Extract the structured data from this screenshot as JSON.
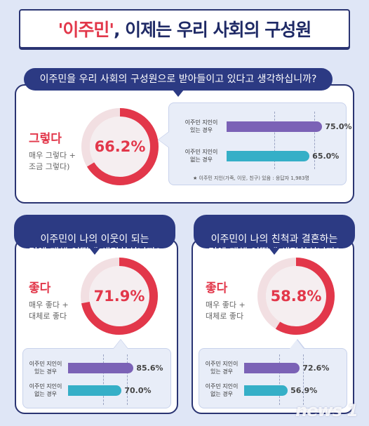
{
  "title": {
    "highlight": "'이주민'",
    "rest": ", 이제는 우리 사회의 구성원"
  },
  "colors": {
    "accent": "#e2374a",
    "navy": "#2c3a83",
    "purple": "#7b62b6",
    "teal": "#35afc7",
    "ring_bg": "#f2dfe2"
  },
  "footnote": "★ 이주민 지인(가족, 이웃, 친구) 있음 : 응답자 1,983명",
  "watermark": "news 1",
  "chart_data": [
    {
      "type": "pie",
      "question": "이주민을 우리 사회의 구성원으로 받아들이고 있다고 생각하십니까?",
      "answer_label": "그렇다",
      "answer_note_1": "매우 그렇다 +",
      "answer_note_2": "조금 그렇다)",
      "value": 66.2,
      "value_label": "66.2%",
      "bars": {
        "type": "bar",
        "orientation": "horizontal",
        "categories": [
          "이주민 지인이\n있는 경우",
          "이주민 지인이\n없는 경우"
        ],
        "values": [
          75.0,
          65.0
        ],
        "value_labels": [
          "75.0%",
          "65.0%"
        ],
        "xlim": [
          0,
          100
        ]
      }
    },
    {
      "type": "pie",
      "question": "이주민이 나의 이웃이 되는\n것에 대해 어떻게 생각하십니까?",
      "answer_label": "좋다",
      "answer_note_1": "매우 좋다 +",
      "answer_note_2": "대체로 좋다",
      "value": 71.9,
      "value_label": "71.9%",
      "bars": {
        "type": "bar",
        "orientation": "horizontal",
        "categories": [
          "이주민 지인이\n있는 경우",
          "이주민 지인이\n없는 경우"
        ],
        "values": [
          85.6,
          70.0
        ],
        "value_labels": [
          "85.6%",
          "70.0%"
        ],
        "xlim": [
          0,
          100
        ]
      }
    },
    {
      "type": "pie",
      "question": "이주민이 나의 친척과 결혼하는\n것에 대해 어떻게 생각하십니까?",
      "answer_label": "좋다",
      "answer_note_1": "매우 좋다 +",
      "answer_note_2": "대체로 좋다",
      "value": 58.8,
      "value_label": "58.8%",
      "bars": {
        "type": "bar",
        "orientation": "horizontal",
        "categories": [
          "이주민 지인이\n있는 경우",
          "이주민 지인이\n없는 경우"
        ],
        "values": [
          72.6,
          56.9
        ],
        "value_labels": [
          "72.6%",
          "56.9%"
        ],
        "xlim": [
          0,
          100
        ]
      }
    }
  ]
}
